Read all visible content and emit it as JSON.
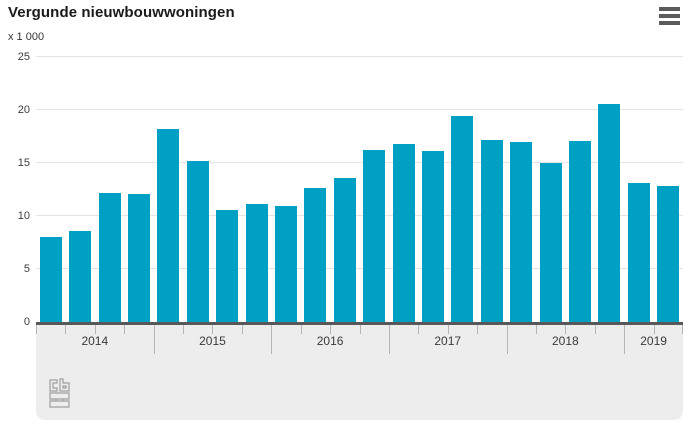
{
  "header": {
    "menu_icon": "hamburger-menu-icon"
  },
  "chart_data": {
    "type": "bar",
    "title": "Vergunde nieuwbouwwoningen",
    "ylabel": "x 1 000",
    "xlabel": "",
    "ylim": [
      0,
      25
    ],
    "yticks": [
      0,
      5,
      10,
      15,
      20,
      25
    ],
    "grid": true,
    "legend": "none",
    "bar_color": "#00a0c5",
    "categories": [
      "2014",
      "2015",
      "2016",
      "2017",
      "2018",
      "2019"
    ],
    "groups": [
      {
        "label": "2014",
        "values": [
          8.0,
          8.6,
          12.2,
          12.1
        ]
      },
      {
        "label": "2015",
        "values": [
          18.2,
          15.2,
          10.6,
          11.1
        ]
      },
      {
        "label": "2016",
        "values": [
          10.9,
          12.6,
          13.6,
          16.2
        ]
      },
      {
        "label": "2017",
        "values": [
          16.8,
          16.1,
          19.4,
          17.2
        ]
      },
      {
        "label": "2018",
        "values": [
          17.0,
          15.0,
          17.1,
          20.6
        ]
      },
      {
        "label": "2019",
        "values": [
          13.1,
          12.8
        ]
      }
    ]
  },
  "colors": {
    "bar": "#00a0c5",
    "baseline": "#58585a",
    "gridline": "#e4e4e4",
    "axis_band_background": "#ededed",
    "tick": "#b5b5b5",
    "menu_icon": "#5b5b5b",
    "logo": "#9e9e9e"
  },
  "footer": {
    "logo": "cbs-logo"
  }
}
